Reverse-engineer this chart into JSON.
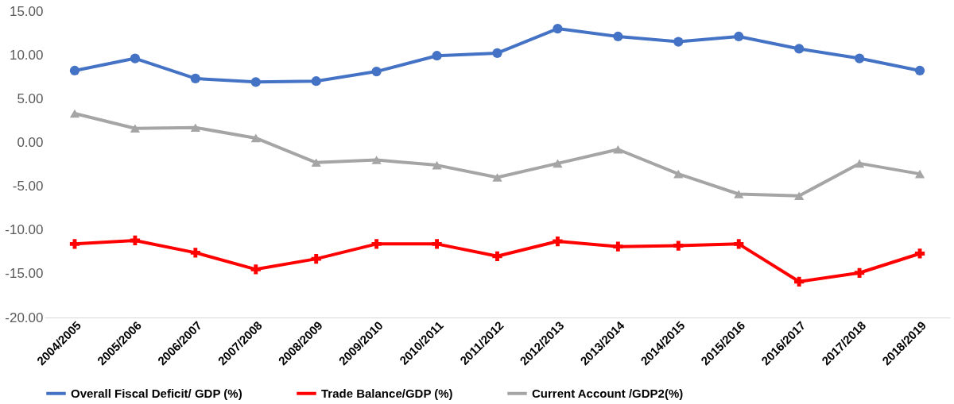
{
  "chart_data": {
    "type": "line",
    "categories": [
      "2004/2005",
      "2005/2006",
      "2006/2007",
      "2007/2008",
      "2008/2009",
      "2009/2010",
      "2010/2011",
      "2011/2012",
      "2012/2013",
      "2013/2014",
      "2014/2015",
      "2015/2016",
      "2016/2017",
      "2017/2018",
      "2018/2019"
    ],
    "series": [
      {
        "name": "Overall Fiscal Deficit/ GDP (%)",
        "color": "#4472c4",
        "marker": "circle",
        "values": [
          8.2,
          9.6,
          7.3,
          6.9,
          7.0,
          8.1,
          9.9,
          10.2,
          13.0,
          12.1,
          11.5,
          12.1,
          10.7,
          9.6,
          8.2
        ]
      },
      {
        "name": "Trade Balance/GDP (%)",
        "color": "#ff0000",
        "marker": "cross",
        "values": [
          -11.6,
          -11.2,
          -12.6,
          -14.5,
          -13.3,
          -11.6,
          -11.6,
          -13.0,
          -11.3,
          -11.9,
          -11.8,
          -11.6,
          -15.9,
          -14.9,
          -12.7
        ]
      },
      {
        "name": "Current Account /GDP2(%)",
        "color": "#a5a5a5",
        "marker": "triangle",
        "values": [
          3.3,
          1.6,
          1.7,
          0.5,
          -2.3,
          -2.0,
          -2.6,
          -4.0,
          -2.4,
          -0.8,
          -3.6,
          -5.9,
          -6.1,
          -2.4,
          -3.6
        ]
      }
    ],
    "ylim": [
      -20,
      15
    ],
    "yticks": [
      {
        "value": -20,
        "label": "-20.00"
      },
      {
        "value": -15,
        "label": "-15.00"
      },
      {
        "value": -10,
        "label": "-10.00"
      },
      {
        "value": -5,
        "label": "-5.00"
      },
      {
        "value": 0,
        "label": "0.00"
      },
      {
        "value": 5,
        "label": "5.00"
      },
      {
        "value": 10,
        "label": "10.00"
      },
      {
        "value": 15,
        "label": "15.00"
      }
    ],
    "grid": false,
    "legend": "bottom",
    "line_style": "solid"
  }
}
